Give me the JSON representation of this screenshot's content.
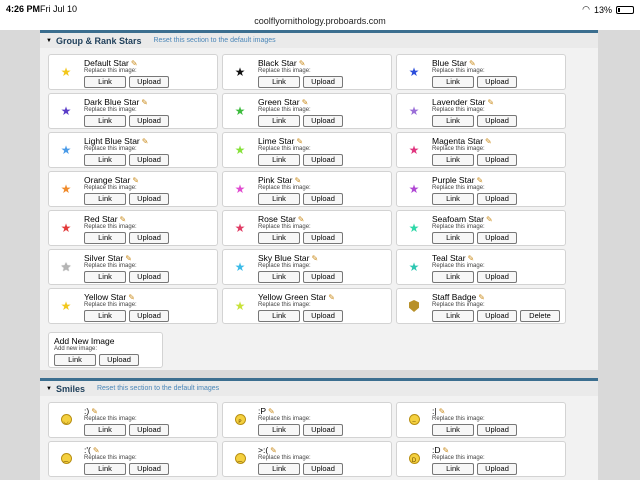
{
  "status": {
    "time": "4:26 PM",
    "date": "Fri Jul 10",
    "battery": "13%"
  },
  "browser": {
    "url": "coolflyornithology.proboards.com"
  },
  "common": {
    "replace_label": "Replace this image:",
    "link": "Link",
    "upload": "Upload",
    "delete": "Delete",
    "pencil": "✎"
  },
  "group_section": {
    "title": "Group & Rank Stars",
    "reset": "Reset this section to the default images",
    "items": [
      {
        "name": "Default Star",
        "icon": "star-yellow-icon",
        "color": "#f2c71c"
      },
      {
        "name": "Black Star",
        "icon": "star-black-icon",
        "color": "#111111"
      },
      {
        "name": "Blue Star",
        "icon": "star-blue-icon",
        "color": "#2b4ddb"
      },
      {
        "name": "Dark Blue Star",
        "icon": "star-dark-blue-icon",
        "color": "#5a3cc7"
      },
      {
        "name": "Green Star",
        "icon": "star-green-icon",
        "color": "#3dbb3d"
      },
      {
        "name": "Lavender Star",
        "icon": "star-lavender-icon",
        "color": "#9a6ed8"
      },
      {
        "name": "Light Blue Star",
        "icon": "star-light-blue-icon",
        "color": "#4a9be8"
      },
      {
        "name": "Lime Star",
        "icon": "star-lime-icon",
        "color": "#86e23a"
      },
      {
        "name": "Magenta Star",
        "icon": "star-magenta-icon",
        "color": "#e0347e"
      },
      {
        "name": "Orange Star",
        "icon": "star-orange-icon",
        "color": "#f08a2a"
      },
      {
        "name": "Pink Star",
        "icon": "star-pink-icon",
        "color": "#e04bd0"
      },
      {
        "name": "Purple Star",
        "icon": "star-purple-icon",
        "color": "#b047d4"
      },
      {
        "name": "Red Star",
        "icon": "star-red-icon",
        "color": "#e33a3a"
      },
      {
        "name": "Rose Star",
        "icon": "star-rose-icon",
        "color": "#e03c64"
      },
      {
        "name": "Seafoam Star",
        "icon": "star-seafoam-icon",
        "color": "#2fd8a8"
      },
      {
        "name": "Silver Star",
        "icon": "star-silver-icon",
        "color": "#b5b5b5"
      },
      {
        "name": "Sky Blue Star",
        "icon": "star-sky-blue-icon",
        "color": "#3cbbe8"
      },
      {
        "name": "Teal Star",
        "icon": "star-teal-icon",
        "color": "#2ec7b2"
      },
      {
        "name": "Yellow Star",
        "icon": "star-yellow-icon",
        "color": "#f2c71c"
      },
      {
        "name": "Yellow Green Star",
        "icon": "star-yellow-green-icon",
        "color": "#c8e23a"
      },
      {
        "name": "Staff Badge",
        "icon": "staff-badge-icon",
        "color": "#b8912a",
        "deletable": true
      }
    ],
    "add": {
      "name": "Add New Image",
      "sub": "Add new image:"
    }
  },
  "smiles_section": {
    "title": "Smiles",
    "reset": "Reset this section to the default images",
    "items": [
      {
        "name": ":)",
        "icon": "smile-icon",
        "face": "◡"
      },
      {
        "name": ":P",
        "icon": "tongue-icon",
        "face": "ᴘ"
      },
      {
        "name": ":|",
        "icon": "neutral-icon",
        "face": "–"
      },
      {
        "name": ":'(",
        "icon": "cry-icon",
        "face": "︵"
      },
      {
        "name": ">:(",
        "icon": "angry-icon",
        "face": "︵"
      },
      {
        "name": ":D",
        "icon": "grin-icon",
        "face": "D"
      }
    ]
  }
}
